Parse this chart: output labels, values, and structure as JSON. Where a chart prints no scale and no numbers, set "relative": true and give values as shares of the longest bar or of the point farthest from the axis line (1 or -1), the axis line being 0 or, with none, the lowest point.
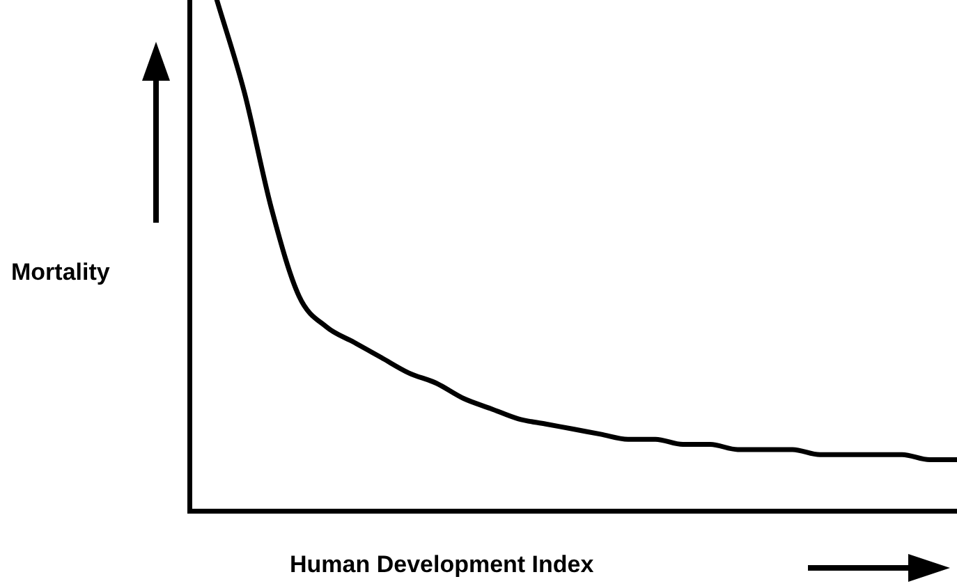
{
  "chart_data": {
    "type": "line",
    "relative": true,
    "xlabel": "Human Development Index",
    "ylabel": "Mortality",
    "categories": [
      null,
      null,
      null,
      null,
      null,
      null,
      null,
      null,
      null,
      null,
      null,
      null,
      null,
      null,
      null,
      null,
      null,
      null,
      null,
      null,
      null,
      null,
      null,
      null,
      null,
      null,
      null,
      null,
      null
    ],
    "series": [
      {
        "color": "#000000",
        "values": [
          null,
          1.0,
          0.82,
          0.59,
          0.42,
          0.36,
          0.33,
          0.3,
          0.27,
          0.25,
          0.22,
          0.2,
          0.18,
          0.17,
          0.16,
          0.15,
          0.14,
          0.14,
          0.13,
          0.13,
          0.12,
          0.12,
          0.12,
          0.11,
          0.11,
          0.11,
          0.11,
          0.1,
          0.1
        ]
      }
    ],
    "grid": false,
    "legend": false,
    "marker": "none",
    "line_style": "solid"
  }
}
